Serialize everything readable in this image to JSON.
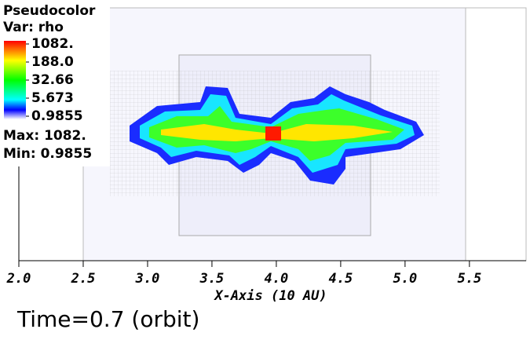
{
  "chart_data": {
    "type": "pseudocolor",
    "legend": {
      "title": "Pseudocolor",
      "variable": "Var: rho",
      "scale": "log",
      "clim": [
        0.9855,
        1082
      ],
      "ticks": [
        {
          "value": 1082,
          "label": "1082."
        },
        {
          "value": 188.0,
          "label": "188.0"
        },
        {
          "value": 32.66,
          "label": "32.66"
        },
        {
          "value": 5.673,
          "label": "5.673"
        },
        {
          "value": 0.9855,
          "label": "0.9855"
        }
      ],
      "max_label": "Max:  1082.",
      "min_label": "Min:  0.9855"
    },
    "x_label": "X-Axis (10 AU)",
    "xlim": [
      2.0,
      5.94
    ],
    "xticks": [
      {
        "value": 2.0,
        "label": "2.0"
      },
      {
        "value": 2.5,
        "label": "2.5"
      },
      {
        "value": 3.0,
        "label": "3.0"
      },
      {
        "value": 3.5,
        "label": "3.5"
      },
      {
        "value": 4.0,
        "label": "4.0"
      },
      {
        "value": 4.5,
        "label": "4.5"
      },
      {
        "value": 5.0,
        "label": "5.0"
      },
      {
        "value": 5.5,
        "label": "5.5"
      }
    ],
    "annotation": "Time=0.7 (orbit)"
  }
}
